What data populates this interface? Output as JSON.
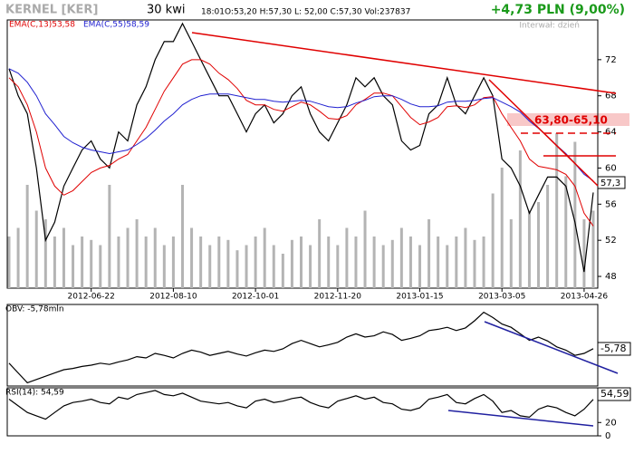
{
  "header": {
    "title": "KERNEL [KER]",
    "period": "30 kwi",
    "time": "18:01",
    "ohlc": "O:53,20 H:57,30 L: 52,00 C:57,30 Vol:237837",
    "change": "+4,73 PLN (9,00%)",
    "interval": "Interwał: dzień"
  },
  "chart_data": [
    {
      "type": "line",
      "categories": [
        null,
        null,
        null,
        null,
        null,
        null,
        null,
        null,
        null,
        "2012-06-22",
        null,
        null,
        null,
        null,
        null,
        null,
        null,
        null,
        "2012-08-10",
        null,
        null,
        null,
        null,
        null,
        null,
        null,
        null,
        "2012-10-01",
        null,
        null,
        null,
        null,
        null,
        null,
        null,
        null,
        "2012-11-20",
        null,
        null,
        null,
        null,
        null,
        null,
        null,
        null,
        "2013-01-15",
        null,
        null,
        null,
        null,
        null,
        null,
        null,
        null,
        "2013-03-05",
        null,
        null,
        null,
        null,
        null,
        null,
        null,
        null,
        "2013-04-26",
        null
      ],
      "series": [
        {
          "color": "#000000",
          "values": [
            71,
            68,
            66,
            60,
            52,
            54,
            58,
            60,
            62,
            63,
            61,
            60,
            64,
            63,
            67,
            69,
            72,
            74,
            74,
            76,
            74,
            72,
            70,
            68,
            68,
            66,
            64,
            66,
            67,
            65,
            66,
            68,
            69,
            66,
            64,
            63,
            65,
            67,
            70,
            69,
            70,
            68,
            67,
            63,
            62,
            62.5,
            66,
            67,
            70,
            67,
            66,
            68,
            70,
            68,
            61,
            60,
            58,
            55,
            57,
            59,
            59,
            58,
            54,
            48.5,
            57.3
          ]
        },
        {
          "name": "EMA(C,13)53,58",
          "color": "#e00000",
          "values": [
            70,
            69,
            67,
            64,
            60,
            58,
            57,
            57.5,
            58.5,
            59.5,
            60,
            60.3,
            61,
            61.5,
            63,
            64.5,
            66.5,
            68.5,
            70,
            71.5,
            72,
            72,
            71.5,
            70.5,
            69.8,
            68.8,
            67.5,
            67,
            67,
            66.5,
            66.3,
            66.8,
            67.3,
            67,
            66.3,
            65.5,
            65.4,
            65.8,
            67,
            67.6,
            68.3,
            68.3,
            68,
            66.8,
            65.6,
            64.8,
            65.1,
            65.6,
            66.8,
            66.9,
            66.7,
            67,
            67.8,
            67.9,
            66,
            64.5,
            63,
            61,
            60.2,
            60,
            59.8,
            59.3,
            58,
            55,
            53.58
          ]
        },
        {
          "name": "EMA(C,55)58,59",
          "color": "#2020d0",
          "values": [
            71,
            70.5,
            69.5,
            68,
            66,
            64.8,
            63.5,
            62.8,
            62.3,
            62,
            61.8,
            61.6,
            61.8,
            62,
            62.6,
            63.3,
            64.2,
            65.2,
            66,
            67,
            67.6,
            68,
            68.2,
            68.2,
            68.2,
            68,
            67.8,
            67.6,
            67.6,
            67.4,
            67.3,
            67.4,
            67.5,
            67.4,
            67.1,
            66.8,
            66.7,
            66.8,
            67.2,
            67.5,
            67.9,
            68,
            68,
            67.6,
            67.1,
            66.8,
            66.8,
            66.9,
            67.3,
            67.4,
            67.4,
            67.5,
            67.7,
            67.8,
            67.3,
            66.8,
            66.2,
            65.2,
            64.4,
            63.5,
            62.5,
            61.6,
            60.5,
            59.3,
            58.59
          ]
        }
      ],
      "volume": {
        "color": "#b4b4b4",
        "values": [
          30,
          35,
          60,
          45,
          40,
          30,
          35,
          25,
          30,
          28,
          25,
          60,
          30,
          35,
          40,
          30,
          35,
          25,
          30,
          60,
          35,
          30,
          25,
          30,
          28,
          22,
          25,
          30,
          35,
          25,
          20,
          28,
          30,
          25,
          40,
          30,
          25,
          35,
          30,
          45,
          30,
          25,
          28,
          35,
          30,
          25,
          40,
          30,
          25,
          30,
          35,
          28,
          30,
          55,
          70,
          40,
          80,
          45,
          50,
          60,
          90,
          65,
          85,
          40,
          45
        ],
        "vlim": [
          0,
          100
        ]
      },
      "ylim": [
        46.7,
        76.4
      ],
      "yticks": [
        48,
        52,
        56,
        60,
        64,
        68,
        72
      ],
      "annotations": [
        "63,80-65,10",
        "57,3"
      ]
    },
    {
      "type": "line",
      "title": "OBV: -5,78mln",
      "series": [
        {
          "color": "#000000",
          "values": [
            -8,
            -9.5,
            -11,
            -10.5,
            -10,
            -9.5,
            -9,
            -8.8,
            -8.5,
            -8.3,
            -8,
            -8.2,
            -7.8,
            -7.5,
            -7,
            -7.2,
            -6.5,
            -6.8,
            -7.2,
            -6.5,
            -6,
            -6.3,
            -6.8,
            -6.5,
            -6.2,
            -6.6,
            -6.9,
            -6.4,
            -6,
            -6.2,
            -5.8,
            -5,
            -4.5,
            -5,
            -5.5,
            -5.2,
            -4.8,
            -4,
            -3.5,
            -4,
            -3.8,
            -3.2,
            -3.6,
            -4.5,
            -4.2,
            -3.8,
            -3,
            -2.8,
            -2.5,
            -3,
            -2.6,
            -1.5,
            -0.2,
            -1,
            -2,
            -2.5,
            -3.5,
            -4.5,
            -4,
            -4.6,
            -5.5,
            -6,
            -6.8,
            -6.5,
            -5.78
          ]
        }
      ],
      "ylim": [
        -11.5,
        1
      ],
      "annotations": [
        "-5,78"
      ]
    },
    {
      "type": "line",
      "title": "RSI(14): 54,59",
      "series": [
        {
          "color": "#000000",
          "values": [
            55,
            45,
            35,
            30,
            25,
            35,
            45,
            50,
            52,
            55,
            50,
            48,
            58,
            55,
            62,
            65,
            68,
            62,
            60,
            64,
            58,
            52,
            50,
            48,
            50,
            45,
            42,
            52,
            55,
            50,
            52,
            56,
            58,
            50,
            45,
            42,
            52,
            56,
            60,
            55,
            58,
            50,
            48,
            40,
            38,
            42,
            55,
            58,
            62,
            50,
            48,
            56,
            62,
            52,
            35,
            38,
            30,
            28,
            40,
            45,
            42,
            35,
            30,
            40,
            54.59
          ]
        }
      ],
      "ylim": [
        0,
        72
      ],
      "yticks": [
        20,
        0
      ],
      "annotations": [
        "54,59"
      ]
    }
  ]
}
